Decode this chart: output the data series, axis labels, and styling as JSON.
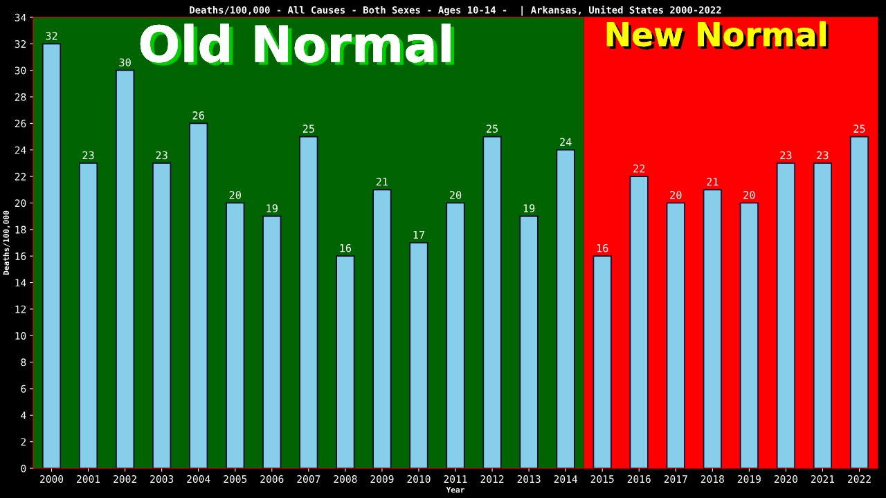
{
  "chart_data": {
    "type": "bar",
    "title": "Deaths/100,000 - All Causes - Both Sexes - Ages 10-14 -  | Arkansas, United States 2000-2022",
    "xlabel": "Year",
    "ylabel": "Deaths/100,000",
    "categories": [
      "2000",
      "2001",
      "2002",
      "2003",
      "2004",
      "2005",
      "2006",
      "2007",
      "2008",
      "2009",
      "2010",
      "2011",
      "2012",
      "2013",
      "2014",
      "2015",
      "2016",
      "2017",
      "2018",
      "2019",
      "2020",
      "2021",
      "2022"
    ],
    "values": [
      32,
      23,
      30,
      23,
      26,
      20,
      19,
      25,
      16,
      21,
      17,
      20,
      25,
      19,
      24,
      16,
      22,
      20,
      21,
      20,
      23,
      23,
      25
    ],
    "color": "#87ceeb",
    "data_labels": true,
    "ylim": [
      0,
      34
    ],
    "yticks": [
      0,
      2,
      4,
      6,
      8,
      10,
      12,
      14,
      16,
      18,
      20,
      22,
      24,
      26,
      28,
      30,
      32,
      34
    ],
    "bands": [
      {
        "axis": "x",
        "from": "2000",
        "to": "2014",
        "label": "Old Normal",
        "color": "#006400"
      },
      {
        "axis": "x",
        "from": "2015",
        "to": "2022",
        "label": "New Normal",
        "color": "#ff0000"
      }
    ],
    "grid": false,
    "legend": false
  }
}
